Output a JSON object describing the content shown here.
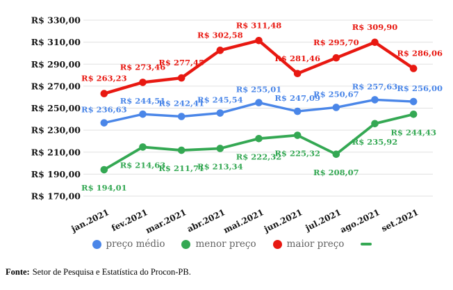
{
  "chart_data": {
    "type": "line",
    "title": "",
    "xlabel": "",
    "ylabel": "",
    "categories": [
      "jan.2021",
      "fev.2021",
      "mar.2021",
      "abr.2021",
      "mai.2021",
      "jun.2021",
      "jul.2021",
      "ago.2021",
      "set.2021"
    ],
    "series": [
      {
        "name": "preço médio",
        "color": "#4a86e8",
        "values": [
          236.63,
          244.51,
          242.41,
          245.54,
          255.01,
          247.09,
          250.67,
          257.63,
          256.0
        ],
        "point_labels": [
          "R$ 236,63",
          "R$ 244,51",
          "R$ 242,41",
          "R$ 245,54",
          "R$ 255,01",
          "R$ 247,09",
          "R$ 250,67",
          "R$ 257,63",
          "R$ 256,00"
        ]
      },
      {
        "name": "menor preço",
        "color": "#34a853",
        "values": [
          194.01,
          214.63,
          211.71,
          213.34,
          222.32,
          225.32,
          208.07,
          235.92,
          244.43
        ],
        "point_labels": [
          "R$ 194,01",
          "R$ 214,63",
          "R$ 211,71",
          "R$ 213,34",
          "R$ 222,32",
          "R$ 225,32",
          "R$ 208,07",
          "R$ 235,92",
          "R$ 244,43"
        ]
      },
      {
        "name": "maior preço",
        "color": "#e81811",
        "values": [
          263.23,
          273.46,
          277.45,
          302.58,
          311.48,
          281.46,
          295.7,
          309.9,
          286.06
        ],
        "point_labels": [
          "R$ 263,23",
          "R$ 273,46",
          "R$ 277,45",
          "R$ 302,58",
          "R$ 311,48",
          "R$ 281,46",
          "R$ 295,70",
          "R$ 309,90",
          "R$ 286,06"
        ]
      }
    ],
    "ylim": [
      170,
      330
    ],
    "y_step": 20,
    "y_tick_labels": [
      "R$ 170,00",
      "R$ 190,00",
      "R$ 210,00",
      "R$ 230,00",
      "R$ 250,00",
      "R$ 270,00",
      "R$ 290,00",
      "R$ 310,00",
      "R$ 330,00"
    ],
    "grid": true,
    "gridline_color": "#e0e0e0",
    "legend_position": "bottom"
  },
  "legend": {
    "items": [
      {
        "label": "preço médio",
        "color": "#4a86e8"
      },
      {
        "label": "menor preço",
        "color": "#34a853"
      },
      {
        "label": "maior preço",
        "color": "#e81811"
      }
    ],
    "dash_color": "#34a853"
  },
  "footer": {
    "label": "Fonte:",
    "text": "Setor de Pesquisa e Estatística do Procon-PB."
  }
}
